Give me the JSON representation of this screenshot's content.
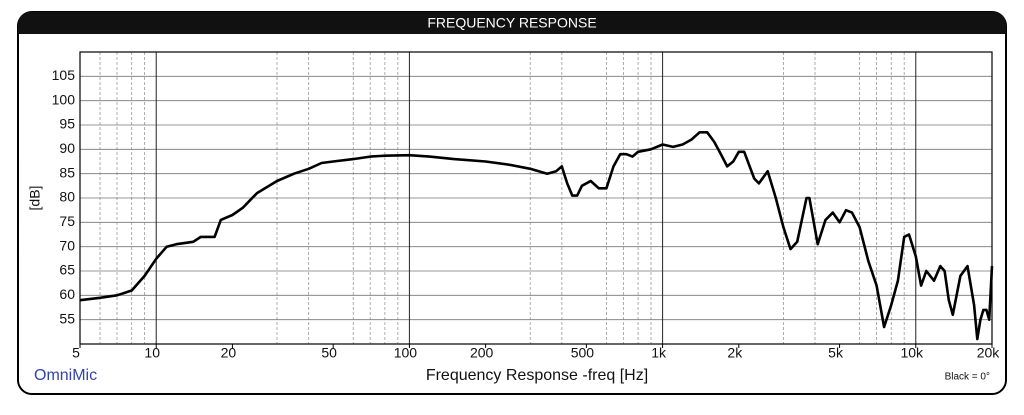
{
  "chart_data": {
    "type": "line",
    "title": "FREQUENCY RESPONSE",
    "x_label": "Frequency Response -freq [Hz]",
    "y_label": "[dB]",
    "brand": "OmniMic",
    "annotation": "Black = 0°",
    "xscale": "log",
    "grid": true,
    "color": "#000000",
    "xlim": [
      5,
      20000
    ],
    "ylim": [
      50,
      110
    ],
    "xticks": [
      5,
      10,
      20,
      50,
      100,
      200,
      500,
      {
        "value": 1000,
        "label": "1k"
      },
      {
        "value": 2000,
        "label": "2k"
      },
      {
        "value": 5000,
        "label": "5k"
      },
      {
        "value": 10000,
        "label": "10k"
      },
      {
        "value": 20000,
        "label": "20k"
      }
    ],
    "x_minor_grid": [
      6,
      7,
      8,
      9,
      30,
      40,
      60,
      70,
      80,
      90,
      300,
      400,
      600,
      700,
      800,
      900,
      3000,
      4000,
      6000,
      7000,
      8000,
      9000
    ],
    "x_major_grid": [
      10,
      100,
      1000,
      10000
    ],
    "yticks": [
      55,
      60,
      65,
      70,
      75,
      80,
      85,
      90,
      95,
      100,
      105
    ],
    "x": [
      5,
      6,
      7,
      8,
      9,
      10,
      11,
      12,
      14,
      15,
      17,
      18,
      20,
      22,
      25,
      30,
      35,
      40,
      45,
      50,
      60,
      70,
      80,
      100,
      120,
      150,
      200,
      250,
      300,
      350,
      380,
      400,
      420,
      440,
      460,
      480,
      520,
      560,
      600,
      640,
      680,
      720,
      760,
      800,
      900,
      1000,
      1100,
      1200,
      1300,
      1400,
      1500,
      1600,
      1700,
      1800,
      1900,
      2000,
      2100,
      2300,
      2400,
      2600,
      2800,
      3000,
      3200,
      3400,
      3700,
      3800,
      4100,
      4400,
      4700,
      5000,
      5300,
      5600,
      6000,
      6500,
      7000,
      7500,
      8000,
      8500,
      9000,
      9400,
      10000,
      10500,
      11000,
      11800,
      12500,
      13000,
      13500,
      14000,
      15000,
      16000,
      17000,
      17500,
      18000,
      18500,
      19000,
      19500,
      20000
    ],
    "values": [
      59,
      59.5,
      60,
      61,
      64,
      67.5,
      70,
      70.5,
      71,
      72,
      72,
      75.5,
      76.5,
      78,
      81,
      83.5,
      85,
      86,
      87.2,
      87.5,
      88,
      88.5,
      88.7,
      88.8,
      88.5,
      88,
      87.5,
      86.8,
      86,
      85,
      85.5,
      86.5,
      83,
      80.5,
      80.5,
      82.5,
      83.5,
      82,
      82,
      86.5,
      89,
      89,
      88.5,
      89.5,
      90,
      91,
      90.5,
      91,
      92,
      93.5,
      93.5,
      91.5,
      89,
      86.5,
      87.5,
      89.5,
      89.5,
      84,
      83,
      85.5,
      80,
      74,
      69.5,
      71,
      80,
      80,
      70.5,
      75.5,
      77,
      75,
      77.5,
      77,
      74,
      67,
      62,
      53.5,
      58,
      63,
      72,
      72.5,
      68,
      62,
      65,
      63,
      66,
      65,
      59,
      56,
      64,
      66,
      58,
      51,
      55,
      57,
      57,
      55,
      66
    ]
  }
}
